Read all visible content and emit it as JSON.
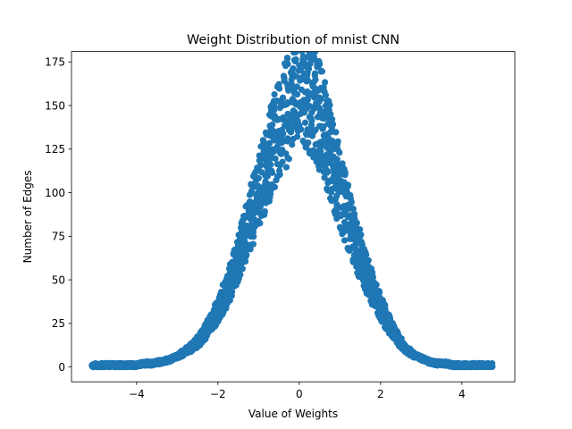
{
  "chart_data": {
    "type": "scatter",
    "title": "Weight Distribution of mnist CNN",
    "xlabel": "Value of Weights",
    "ylabel": "Number of Edges",
    "xlim": [
      -5.6,
      5.3
    ],
    "ylim": [
      -8.5,
      181
    ],
    "xticks": [
      -4,
      -2,
      0,
      2,
      4
    ],
    "yticks": [
      0,
      25,
      50,
      75,
      100,
      125,
      150,
      175
    ],
    "xtick_labels": [
      "−4",
      "−2",
      "0",
      "2",
      "4"
    ],
    "ytick_labels": [
      "0",
      "25",
      "50",
      "75",
      "100",
      "125",
      "150",
      "175"
    ],
    "grid": false,
    "marker_color": "#1f77b4",
    "series": [
      {
        "distribution": "approximately gaussian",
        "x_range": [
          -5.1,
          4.75
        ],
        "peak_x": 0.0,
        "peak_y": 173,
        "points": [
          [
            -5.07,
            1
          ],
          [
            -4.85,
            1
          ],
          [
            -4.6,
            1
          ],
          [
            -4.4,
            1
          ],
          [
            -4.2,
            1
          ],
          [
            -4.0,
            1
          ],
          [
            -3.8,
            2
          ],
          [
            -3.6,
            2
          ],
          [
            -3.4,
            3
          ],
          [
            -3.2,
            4
          ],
          [
            -3.0,
            6
          ],
          [
            -2.8,
            9
          ],
          [
            -2.6,
            12
          ],
          [
            -2.4,
            17
          ],
          [
            -2.2,
            24
          ],
          [
            -2.0,
            33
          ],
          [
            -1.8,
            43
          ],
          [
            -1.6,
            55
          ],
          [
            -1.4,
            70
          ],
          [
            -1.2,
            85
          ],
          [
            -1.0,
            100
          ],
          [
            -0.8,
            115
          ],
          [
            -0.6,
            130
          ],
          [
            -0.4,
            143
          ],
          [
            -0.2,
            152
          ],
          [
            0.0,
            173
          ],
          [
            0.2,
            158
          ],
          [
            0.4,
            150
          ],
          [
            0.6,
            138
          ],
          [
            0.8,
            120
          ],
          [
            1.0,
            102
          ],
          [
            1.2,
            86
          ],
          [
            1.4,
            71
          ],
          [
            1.6,
            57
          ],
          [
            1.8,
            45
          ],
          [
            2.0,
            34
          ],
          [
            2.2,
            25
          ],
          [
            2.4,
            17
          ],
          [
            2.6,
            11
          ],
          [
            2.8,
            7
          ],
          [
            3.0,
            5
          ],
          [
            3.2,
            3
          ],
          [
            3.4,
            2
          ],
          [
            3.6,
            2
          ],
          [
            3.8,
            1
          ],
          [
            4.0,
            1
          ],
          [
            4.2,
            1
          ],
          [
            4.4,
            1
          ],
          [
            4.6,
            1
          ],
          [
            4.72,
            1
          ]
        ]
      }
    ]
  }
}
